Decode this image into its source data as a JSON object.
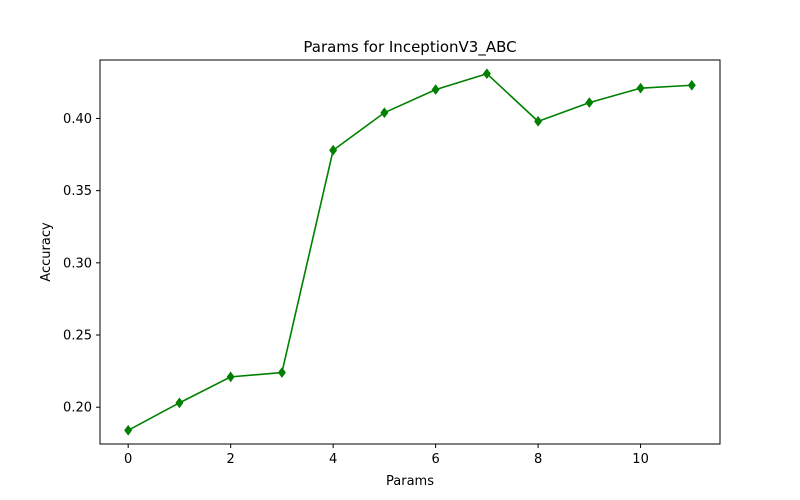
{
  "chart_data": {
    "type": "line",
    "title": "Params for InceptionV3_ABC",
    "xlabel": "Params",
    "ylabel": "Accuracy",
    "xlim": [
      -0.55,
      11.55
    ],
    "ylim": [
      0.1745,
      0.4405
    ],
    "xticks": [
      0,
      2,
      4,
      6,
      8,
      10
    ],
    "xtick_labels": [
      "0",
      "2",
      "4",
      "6",
      "8",
      "10"
    ],
    "yticks": [
      0.2,
      0.25,
      0.3,
      0.35,
      0.4
    ],
    "ytick_labels": [
      "0.20",
      "0.25",
      "0.30",
      "0.35",
      "0.40"
    ],
    "grid": false,
    "series": [
      {
        "color": "#008000",
        "marker": "diamond",
        "x": [
          0,
          1,
          2,
          3,
          4,
          5,
          6,
          7,
          8,
          9,
          10,
          11
        ],
        "y": [
          0.184,
          0.203,
          0.221,
          0.224,
          0.378,
          0.404,
          0.42,
          0.431,
          0.398,
          0.411,
          0.421,
          0.423
        ]
      }
    ]
  }
}
